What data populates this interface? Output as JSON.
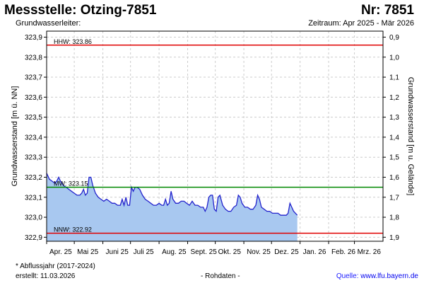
{
  "header": {
    "title_left": "Messstelle: Otzing-7851",
    "title_right": "Nr: 7851",
    "subtitle_left": "Grundwasserleiter:",
    "subtitle_right": "Zeitraum: Apr 2025 - Mär 2026"
  },
  "footer": {
    "footnote": "* Abflussjahr (2017-2024)",
    "created": "erstellt:  11.03.2026",
    "rohdaten": "- Rohdaten -",
    "quelle_label": "Quelle: ",
    "quelle_url": "www.lfu.bayern.de"
  },
  "colors": {
    "area_fill": "#a8c8f0",
    "line": "#2222cc",
    "hhw_nnw": "#e00000",
    "mw": "#008800",
    "grid": "#cccccc"
  },
  "chart_data": {
    "type": "area",
    "x_unit": "days since 2025-04-01",
    "xlim": [
      0,
      365
    ],
    "ylim": [
      322.88,
      323.93
    ],
    "ylabel": "Grundwasserstand [m ü. NN]",
    "ylabel_right": "Grundwasserstand [m u. Gelände]",
    "y_ticks": [
      {
        "v": 322.9,
        "l": "322,9"
      },
      {
        "v": 323.0,
        "l": "323,0"
      },
      {
        "v": 323.1,
        "l": "323,1"
      },
      {
        "v": 323.2,
        "l": "323,2"
      },
      {
        "v": 323.3,
        "l": "323,3"
      },
      {
        "v": 323.4,
        "l": "323,4"
      },
      {
        "v": 323.5,
        "l": "323,5"
      },
      {
        "v": 323.6,
        "l": "323,6"
      },
      {
        "v": 323.7,
        "l": "323,7"
      },
      {
        "v": 323.8,
        "l": "323,8"
      },
      {
        "v": 323.9,
        "l": "323,9"
      }
    ],
    "y_ticks_right": [
      {
        "v": 323.9,
        "l": "0,9"
      },
      {
        "v": 323.8,
        "l": "1,0"
      },
      {
        "v": 323.7,
        "l": "1,1"
      },
      {
        "v": 323.6,
        "l": "1,2"
      },
      {
        "v": 323.5,
        "l": "1,3"
      },
      {
        "v": 323.4,
        "l": "1,4"
      },
      {
        "v": 323.3,
        "l": "1,5"
      },
      {
        "v": 323.2,
        "l": "1,6"
      },
      {
        "v": 323.1,
        "l": "1,7"
      },
      {
        "v": 323.0,
        "l": "1,8"
      },
      {
        "v": 322.9,
        "l": "1,9"
      }
    ],
    "x_labels": [
      {
        "d": 0,
        "l": "Apr. 25"
      },
      {
        "d": 30,
        "l": "Mai 25"
      },
      {
        "d": 61,
        "l": "Juni 25"
      },
      {
        "d": 91,
        "l": "Juli 25"
      },
      {
        "d": 122,
        "l": "Aug. 25"
      },
      {
        "d": 153,
        "l": "Sept. 25"
      },
      {
        "d": 183,
        "l": "Okt. 25"
      },
      {
        "d": 214,
        "l": "Nov. 25"
      },
      {
        "d": 244,
        "l": "Dez. 25"
      },
      {
        "d": 275,
        "l": "Jan. 26"
      },
      {
        "d": 306,
        "l": "Feb. 26"
      },
      {
        "d": 334,
        "l": "Mrz. 26"
      }
    ],
    "reference_lines": [
      {
        "name": "HHW",
        "value": 323.86,
        "label": "HHW: 323.86",
        "color": "#e00000"
      },
      {
        "name": "MW",
        "value": 323.15,
        "label": "MW: 323.15",
        "color": "#008800"
      },
      {
        "name": "NNW",
        "value": 322.92,
        "label": "NNW: 322.92",
        "color": "#e00000"
      }
    ],
    "series": [
      {
        "name": "",
        "points": [
          [
            0,
            323.22
          ],
          [
            3,
            323.19
          ],
          [
            6,
            323.18
          ],
          [
            9,
            323.17
          ],
          [
            11,
            323.18
          ],
          [
            13,
            323.2
          ],
          [
            15,
            323.18
          ],
          [
            18,
            323.16
          ],
          [
            21,
            323.15
          ],
          [
            24,
            323.14
          ],
          [
            27,
            323.13
          ],
          [
            30,
            323.12
          ],
          [
            33,
            323.11
          ],
          [
            36,
            323.11
          ],
          [
            38,
            323.12
          ],
          [
            40,
            323.14
          ],
          [
            42,
            323.11
          ],
          [
            44,
            323.12
          ],
          [
            46,
            323.2
          ],
          [
            48,
            323.2
          ],
          [
            50,
            323.16
          ],
          [
            53,
            323.12
          ],
          [
            56,
            323.1
          ],
          [
            59,
            323.09
          ],
          [
            62,
            323.08
          ],
          [
            65,
            323.09
          ],
          [
            68,
            323.08
          ],
          [
            71,
            323.07
          ],
          [
            74,
            323.07
          ],
          [
            77,
            323.06
          ],
          [
            80,
            323.06
          ],
          [
            82,
            323.09
          ],
          [
            84,
            323.06
          ],
          [
            86,
            323.1
          ],
          [
            88,
            323.06
          ],
          [
            90,
            323.06
          ],
          [
            92,
            323.15
          ],
          [
            94,
            323.13
          ],
          [
            96,
            323.15
          ],
          [
            98,
            323.15
          ],
          [
            101,
            323.14
          ],
          [
            104,
            323.11
          ],
          [
            107,
            323.09
          ],
          [
            110,
            323.08
          ],
          [
            113,
            323.07
          ],
          [
            116,
            323.06
          ],
          [
            119,
            323.06
          ],
          [
            122,
            323.07
          ],
          [
            125,
            323.06
          ],
          [
            127,
            323.06
          ],
          [
            129,
            323.09
          ],
          [
            131,
            323.06
          ],
          [
            133,
            323.07
          ],
          [
            135,
            323.13
          ],
          [
            137,
            323.09
          ],
          [
            140,
            323.07
          ],
          [
            143,
            323.07
          ],
          [
            146,
            323.08
          ],
          [
            149,
            323.08
          ],
          [
            152,
            323.07
          ],
          [
            155,
            323.06
          ],
          [
            158,
            323.08
          ],
          [
            161,
            323.06
          ],
          [
            164,
            323.06
          ],
          [
            167,
            323.05
          ],
          [
            170,
            323.05
          ],
          [
            172,
            323.03
          ],
          [
            174,
            323.05
          ],
          [
            176,
            323.1
          ],
          [
            178,
            323.11
          ],
          [
            180,
            323.11
          ],
          [
            182,
            323.04
          ],
          [
            184,
            323.03
          ],
          [
            186,
            323.1
          ],
          [
            188,
            323.11
          ],
          [
            191,
            323.06
          ],
          [
            194,
            323.04
          ],
          [
            197,
            323.03
          ],
          [
            200,
            323.03
          ],
          [
            203,
            323.05
          ],
          [
            206,
            323.06
          ],
          [
            208,
            323.11
          ],
          [
            210,
            323.1
          ],
          [
            212,
            323.07
          ],
          [
            215,
            323.05
          ],
          [
            218,
            323.05
          ],
          [
            221,
            323.04
          ],
          [
            224,
            323.04
          ],
          [
            227,
            323.06
          ],
          [
            229,
            323.11
          ],
          [
            231,
            323.09
          ],
          [
            233,
            323.05
          ],
          [
            236,
            323.04
          ],
          [
            239,
            323.03
          ],
          [
            242,
            323.03
          ],
          [
            245,
            323.02
          ],
          [
            248,
            323.02
          ],
          [
            251,
            323.02
          ],
          [
            254,
            323.01
          ],
          [
            257,
            323.01
          ],
          [
            260,
            323.01
          ],
          [
            262,
            323.02
          ],
          [
            264,
            323.07
          ],
          [
            266,
            323.05
          ],
          [
            268,
            323.03
          ],
          [
            270,
            323.02
          ],
          [
            272,
            323.01
          ]
        ]
      }
    ]
  }
}
